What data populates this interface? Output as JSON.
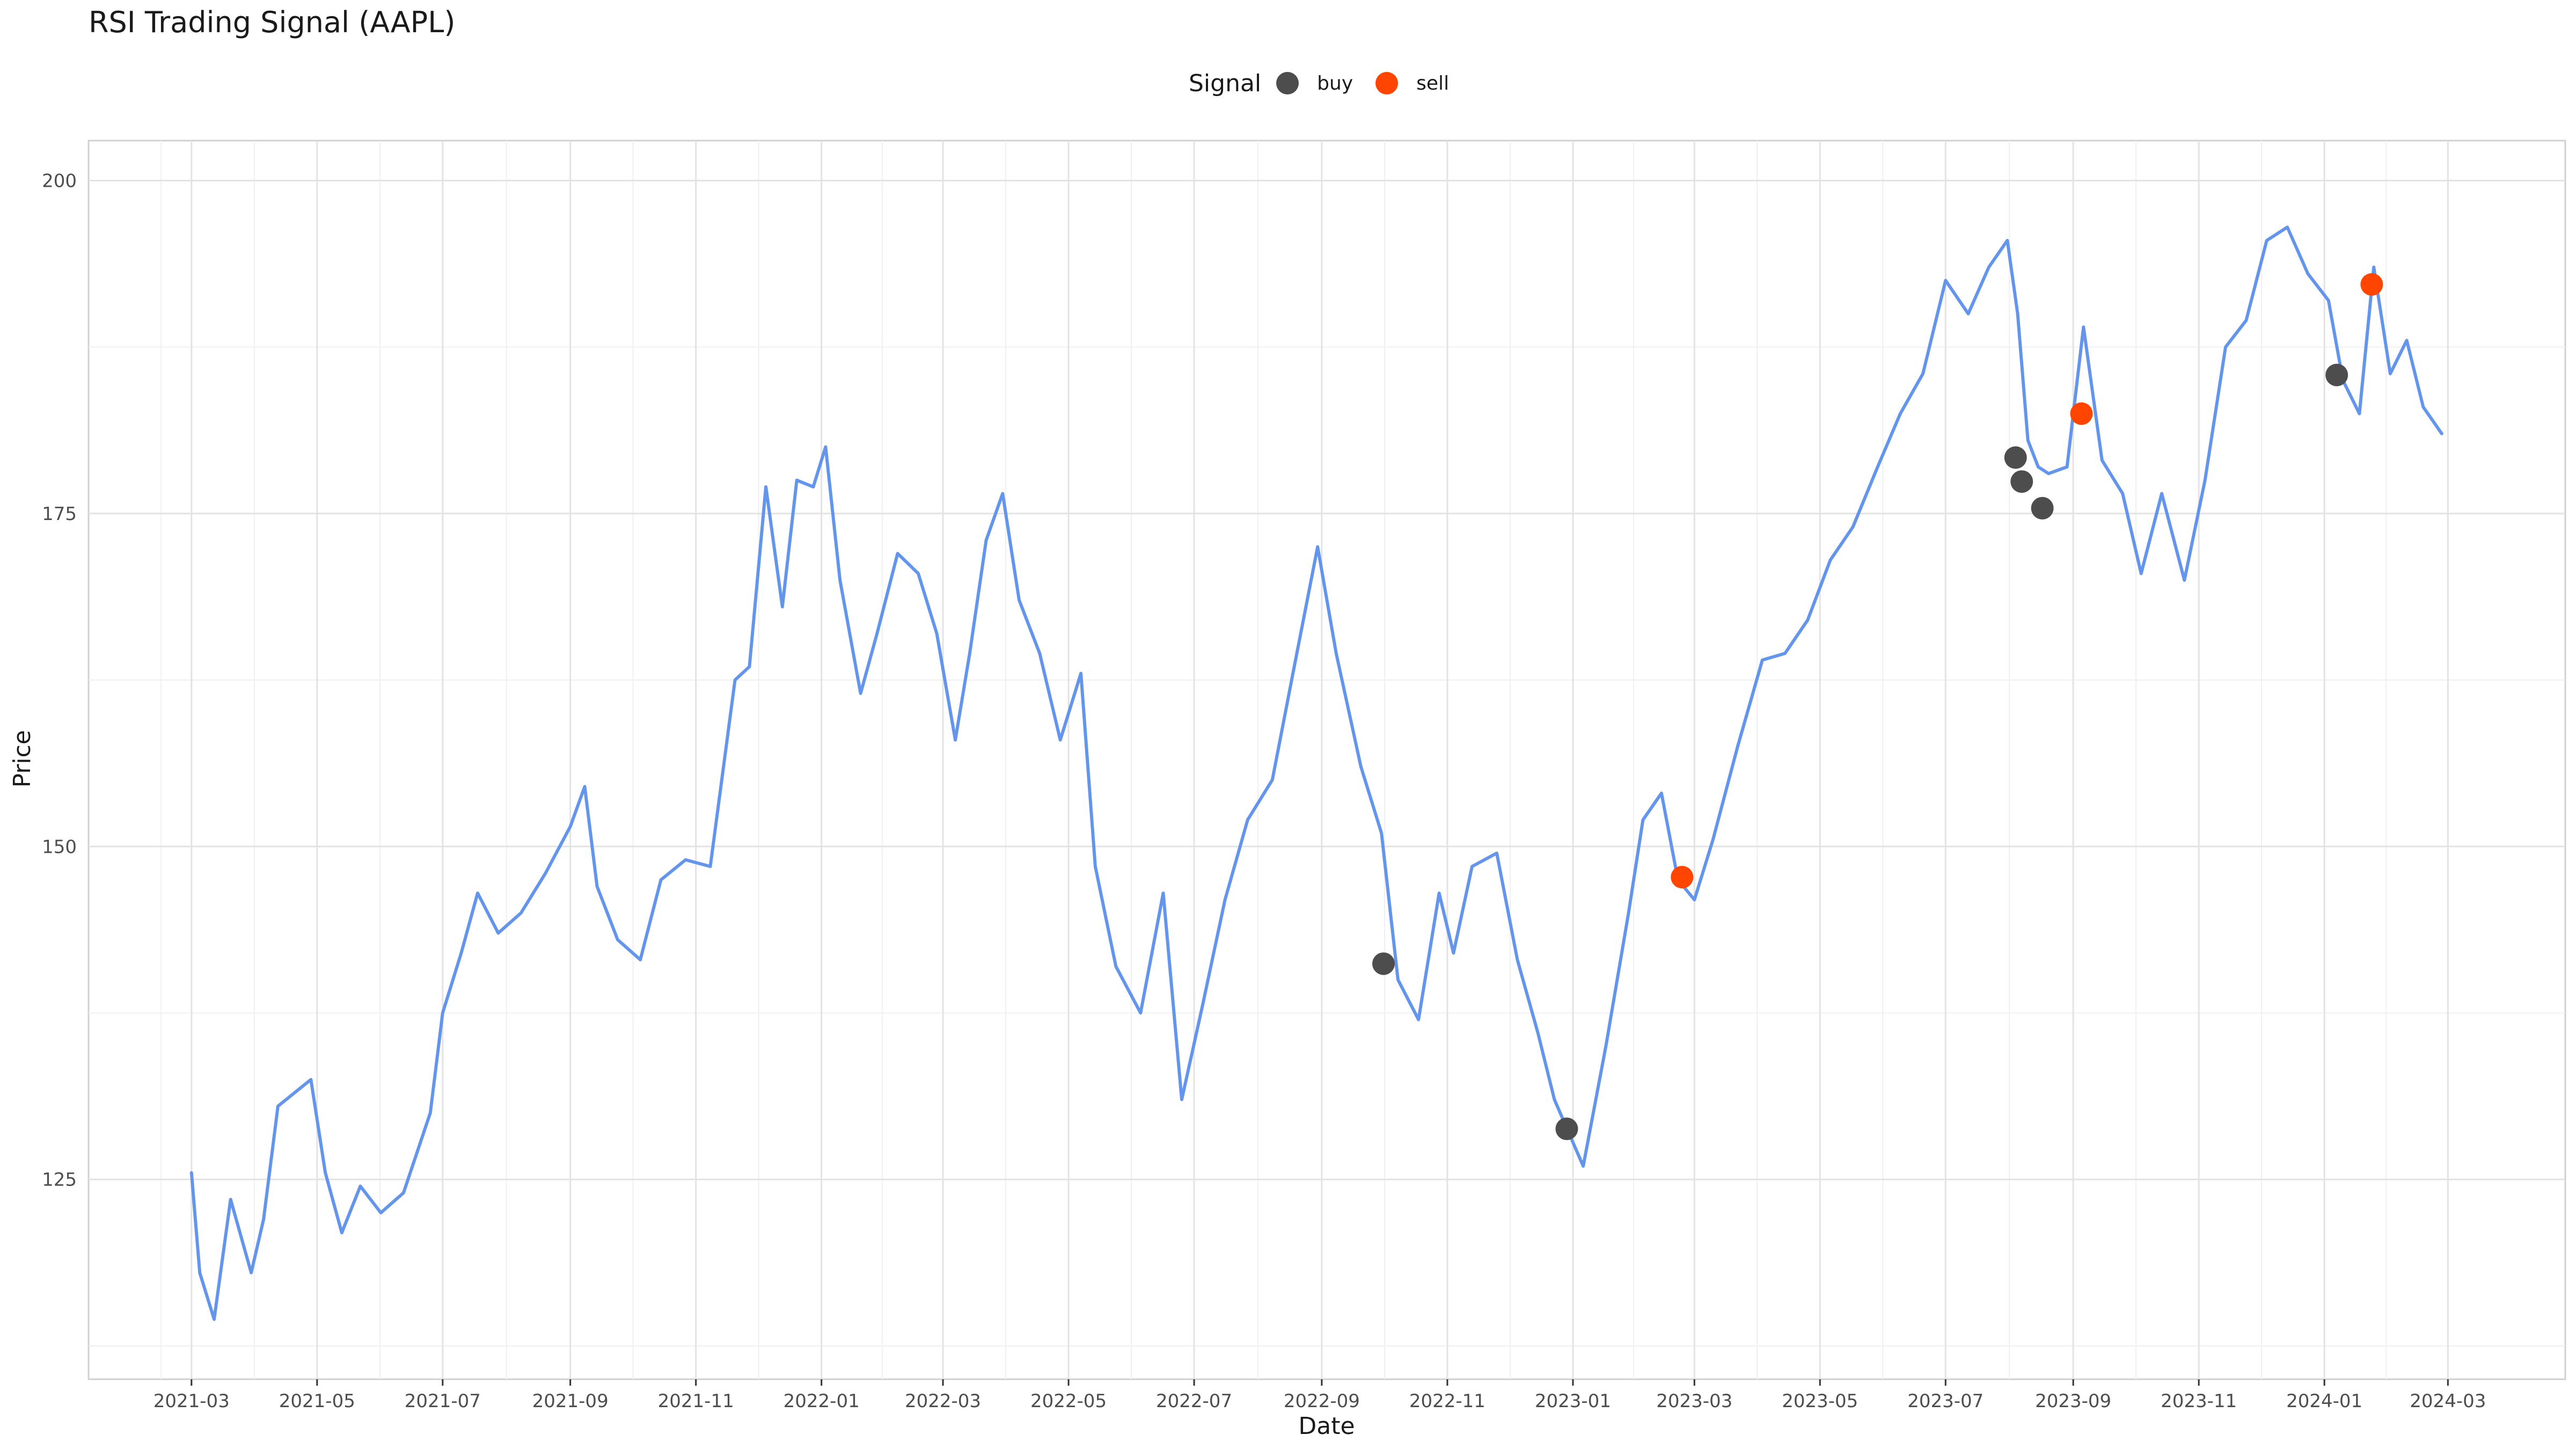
{
  "chart_data": {
    "type": "line",
    "title": "RSI Trading Signal (AAPL)",
    "xlabel": "Date",
    "ylabel": "Price",
    "xlim": [
      "2021-01-10",
      "2024-04-27"
    ],
    "ylim": [
      110,
      203
    ],
    "x_ticks": [
      "2021-03",
      "2021-05",
      "2021-07",
      "2021-09",
      "2021-11",
      "2022-01",
      "2022-03",
      "2022-05",
      "2022-07",
      "2022-09",
      "2022-11",
      "2023-01",
      "2023-03",
      "2023-05",
      "2023-07",
      "2023-09",
      "2023-11",
      "2024-01",
      "2024-03"
    ],
    "y_ticks": [
      125,
      150,
      175,
      200
    ],
    "grid": true,
    "legend": {
      "title": "Signal",
      "position": "top",
      "entries": [
        "buy",
        "sell"
      ]
    },
    "colors": {
      "line": "#6495ED",
      "buy": "#4D4D4D",
      "sell": "#FF4500"
    },
    "series": [
      {
        "x": [
          "2021-03-01",
          "2021-03-05",
          "2021-03-12",
          "2021-03-20",
          "2021-03-30",
          "2021-04-05",
          "2021-04-12",
          "2021-04-20",
          "2021-04-28",
          "2021-05-05",
          "2021-05-13",
          "2021-05-22",
          "2021-06-01",
          "2021-06-12",
          "2021-06-25",
          "2021-07-01",
          "2021-07-10",
          "2021-07-18",
          "2021-07-28",
          "2021-08-08",
          "2021-08-20",
          "2021-09-01",
          "2021-09-08",
          "2021-09-14",
          "2021-09-24",
          "2021-10-05",
          "2021-10-15",
          "2021-10-27",
          "2021-11-08",
          "2021-11-20",
          "2021-11-27",
          "2021-12-05",
          "2021-12-13",
          "2021-12-20",
          "2021-12-28",
          "2022-01-03",
          "2022-01-10",
          "2022-01-20",
          "2022-01-28",
          "2022-02-07",
          "2022-02-17",
          "2022-02-26",
          "2022-03-07",
          "2022-03-14",
          "2022-03-22",
          "2022-03-30",
          "2022-04-07",
          "2022-04-17",
          "2022-04-27",
          "2022-05-07",
          "2022-05-14",
          "2022-05-24",
          "2022-06-05",
          "2022-06-16",
          "2022-06-25",
          "2022-07-05",
          "2022-07-16",
          "2022-07-27",
          "2022-08-08",
          "2022-08-18",
          "2022-08-30",
          "2022-09-08",
          "2022-09-20",
          "2022-09-30",
          "2022-10-08",
          "2022-10-18",
          "2022-10-28",
          "2022-11-04",
          "2022-11-13",
          "2022-11-25",
          "2022-12-05",
          "2022-12-15",
          "2022-12-23",
          "2022-12-30",
          "2023-01-06",
          "2023-01-17",
          "2023-01-28",
          "2023-02-04",
          "2023-02-13",
          "2023-02-21",
          "2023-03-01",
          "2023-03-10",
          "2023-03-22",
          "2023-04-03",
          "2023-04-14",
          "2023-04-25",
          "2023-05-06",
          "2023-05-17",
          "2023-05-29",
          "2023-06-09",
          "2023-06-20",
          "2023-07-01",
          "2023-07-12",
          "2023-07-22",
          "2023-07-31",
          "2023-08-05",
          "2023-08-10",
          "2023-08-15",
          "2023-08-20",
          "2023-08-29",
          "2023-09-06",
          "2023-09-15",
          "2023-09-25",
          "2023-10-04",
          "2023-10-14",
          "2023-10-25",
          "2023-11-04",
          "2023-11-14",
          "2023-11-24",
          "2023-12-04",
          "2023-12-14",
          "2023-12-24",
          "2024-01-03",
          "2024-01-10",
          "2024-01-18",
          "2024-01-25",
          "2024-02-02",
          "2024-02-10",
          "2024-02-18",
          "2024-02-27"
        ],
        "values": [
          125.5,
          118.0,
          114.5,
          123.5,
          118.0,
          122.0,
          130.5,
          131.5,
          132.5,
          125.5,
          121.0,
          124.5,
          122.5,
          124.0,
          130.0,
          137.5,
          142.0,
          146.5,
          143.5,
          145.0,
          148.0,
          151.5,
          154.5,
          147.0,
          143.0,
          141.5,
          147.5,
          149.0,
          148.5,
          162.5,
          163.5,
          177.0,
          168.0,
          177.5,
          177.0,
          180.0,
          170.0,
          161.5,
          166.0,
          172.0,
          170.5,
          166.0,
          158.0,
          164.5,
          173.0,
          176.5,
          168.5,
          164.5,
          158.0,
          163.0,
          148.5,
          141.0,
          137.5,
          146.5,
          131.0,
          138.0,
          146.0,
          152.0,
          155.0,
          163.0,
          172.5,
          164.5,
          156.0,
          151.0,
          140.0,
          137.0,
          146.5,
          142.0,
          148.5,
          149.5,
          141.5,
          136.0,
          131.0,
          128.5,
          126.0,
          135.0,
          145.0,
          152.0,
          154.0,
          147.5,
          146.0,
          150.5,
          157.5,
          164.0,
          164.5,
          167.0,
          171.5,
          174.0,
          178.5,
          182.5,
          185.5,
          192.5,
          190.0,
          193.5,
          195.5,
          190.0,
          180.5,
          178.5,
          178.0,
          178.5,
          189.0,
          179.0,
          176.5,
          170.5,
          176.5,
          170.0,
          177.5,
          187.5,
          189.5,
          195.5,
          196.5,
          193.0,
          191.0,
          185.0,
          182.5,
          193.5,
          185.5,
          188.0,
          183.0,
          181.0
        ]
      }
    ],
    "signals": [
      {
        "date": "2022-10-01",
        "price": 141.2,
        "signal": "buy"
      },
      {
        "date": "2022-12-29",
        "price": 128.8,
        "signal": "buy"
      },
      {
        "date": "2023-02-23",
        "price": 147.7,
        "signal": "sell"
      },
      {
        "date": "2023-08-04",
        "price": 179.2,
        "signal": "buy"
      },
      {
        "date": "2023-08-07",
        "price": 177.4,
        "signal": "buy"
      },
      {
        "date": "2023-08-17",
        "price": 175.4,
        "signal": "buy"
      },
      {
        "date": "2023-09-05",
        "price": 182.5,
        "signal": "sell"
      },
      {
        "date": "2024-01-07",
        "price": 185.4,
        "signal": "buy"
      },
      {
        "date": "2024-01-24",
        "price": 192.2,
        "signal": "sell"
      }
    ]
  }
}
